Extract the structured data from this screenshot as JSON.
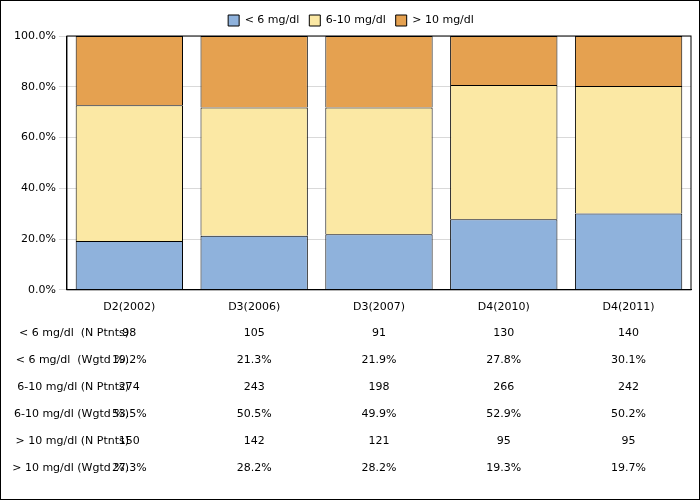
{
  "chart_data": {
    "type": "bar",
    "stacked": true,
    "grid": true,
    "legend": "top",
    "categories": [
      "D2(2002)",
      "D3(2006)",
      "D3(2007)",
      "D4(2010)",
      "D4(2011)"
    ],
    "series": [
      {
        "name": "< 6 mg/dl",
        "color": "#8fb2dc",
        "values": [
          19.2,
          21.3,
          21.9,
          27.8,
          30.1
        ]
      },
      {
        "name": "6-10 mg/dl",
        "color": "#fbe8a4",
        "values": [
          53.5,
          50.5,
          49.9,
          52.9,
          50.2
        ]
      },
      {
        "name": "> 10 mg/dl",
        "color": "#e5a150",
        "values": [
          27.3,
          28.2,
          28.2,
          19.3,
          19.7
        ]
      }
    ],
    "ylim": [
      0,
      100
    ],
    "yticks": [
      {
        "value": 0,
        "label": "0.0%"
      },
      {
        "value": 20,
        "label": "20.0%"
      },
      {
        "value": 40,
        "label": "40.0%"
      },
      {
        "value": 60,
        "label": "60.0%"
      },
      {
        "value": 80,
        "label": "80.0%"
      },
      {
        "value": 100,
        "label": "100.0%"
      }
    ],
    "table": {
      "rows": [
        {
          "label": "< 6 mg/dl  (N Ptnts)",
          "values": [
            98,
            105,
            91,
            130,
            140
          ]
        },
        {
          "label": "< 6 mg/dl  (Wgtd %)",
          "values": [
            19.2,
            21.3,
            21.9,
            27.8,
            30.1
          ],
          "value_labels": [
            "19.2%",
            "21.3%",
            "21.9%",
            "27.8%",
            "30.1%"
          ]
        },
        {
          "label": "6-10 mg/dl (N Ptnts)",
          "values": [
            274,
            243,
            198,
            266,
            242
          ]
        },
        {
          "label": "6-10 mg/dl (Wgtd %)",
          "values": [
            53.5,
            50.5,
            49.9,
            52.9,
            50.2
          ],
          "value_labels": [
            "53.5%",
            "50.5%",
            "49.9%",
            "52.9%",
            "50.2%"
          ]
        },
        {
          "label": "> 10 mg/dl (N Ptnts)",
          "values": [
            150,
            142,
            121,
            95,
            95
          ]
        },
        {
          "label": "> 10 mg/dl (Wgtd %)",
          "values": [
            27.3,
            28.2,
            28.2,
            19.3,
            19.7
          ],
          "value_labels": [
            "27.3%",
            "28.2%",
            "28.2%",
            "19.3%",
            "19.7%"
          ]
        }
      ]
    }
  }
}
